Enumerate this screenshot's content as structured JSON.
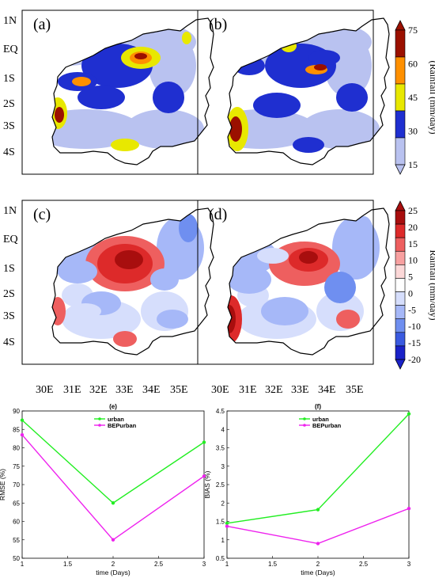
{
  "map_panels": [
    {
      "label": "(a)",
      "colorbar": "rain"
    },
    {
      "label": "(b)",
      "colorbar": "rain"
    },
    {
      "label": "(c)",
      "colorbar": "diff"
    },
    {
      "label": "(d)",
      "colorbar": "diff"
    }
  ],
  "map_axes": {
    "lat_labels": [
      "1N",
      "EQ",
      "1S",
      "2S",
      "3S",
      "4S"
    ],
    "lon_labels": [
      "30E",
      "31E",
      "32E",
      "33E",
      "34E",
      "35E"
    ]
  },
  "colorbars": {
    "rain": {
      "title": "(Rainfall (mm/day)",
      "ticks": [
        "75",
        "60",
        "45",
        "30",
        "15"
      ],
      "colors": [
        "#b9c2f0",
        "#1f2fd0",
        "#e8e800",
        "#ff9000",
        "#9b1000"
      ]
    },
    "diff": {
      "title": "Rainfall (mm/day)",
      "ticks": [
        "25",
        "20",
        "15",
        "10",
        "5",
        "0",
        "-5",
        "-10",
        "-15",
        "-20"
      ],
      "colors": [
        "#1a22c8",
        "#3a5ae0",
        "#6f8ff0",
        "#a6b8f8",
        "#d6defc",
        "#ffffff",
        "#fcd8d8",
        "#f8a0a0",
        "#ee5f5f",
        "#dd2a2a",
        "#a80e0e"
      ]
    }
  },
  "chart_data": [
    {
      "type": "line",
      "title": "(e)",
      "xlabel": "time (Days)",
      "ylabel": "RMSE (%)",
      "xlim": [
        1,
        3
      ],
      "ylim": [
        50,
        90
      ],
      "x_ticks": [
        "1",
        "1.5",
        "2",
        "2.5",
        "3"
      ],
      "y_ticks": [
        "50",
        "55",
        "60",
        "65",
        "70",
        "75",
        "80",
        "85",
        "90"
      ],
      "x": [
        1,
        2,
        3
      ],
      "series": [
        {
          "name": "urban",
          "color": "#22ee22",
          "values": [
            87.5,
            65,
            81.5
          ]
        },
        {
          "name": "BEPurban",
          "color": "#ee22ee",
          "values": [
            83.5,
            55,
            72.3
          ]
        }
      ],
      "legend": "top-center"
    },
    {
      "type": "line",
      "title": "(f)",
      "xlabel": "time (Days)",
      "ylabel": "BIAS (%)",
      "xlim": [
        1,
        3
      ],
      "ylim": [
        0.5,
        4.5
      ],
      "x_ticks": [
        "1",
        "1.5",
        "2",
        "2.5",
        "3"
      ],
      "y_ticks": [
        "0.5",
        "1",
        "1.5",
        "2",
        "2.5",
        "3",
        "3.5",
        "4",
        "4.5"
      ],
      "x": [
        1,
        2,
        3
      ],
      "series": [
        {
          "name": "urban",
          "color": "#22ee22",
          "values": [
            1.45,
            1.82,
            4.42
          ]
        },
        {
          "name": "BEPurban",
          "color": "#ee22ee",
          "values": [
            1.37,
            0.9,
            1.85
          ]
        }
      ],
      "legend": "top-center"
    }
  ]
}
